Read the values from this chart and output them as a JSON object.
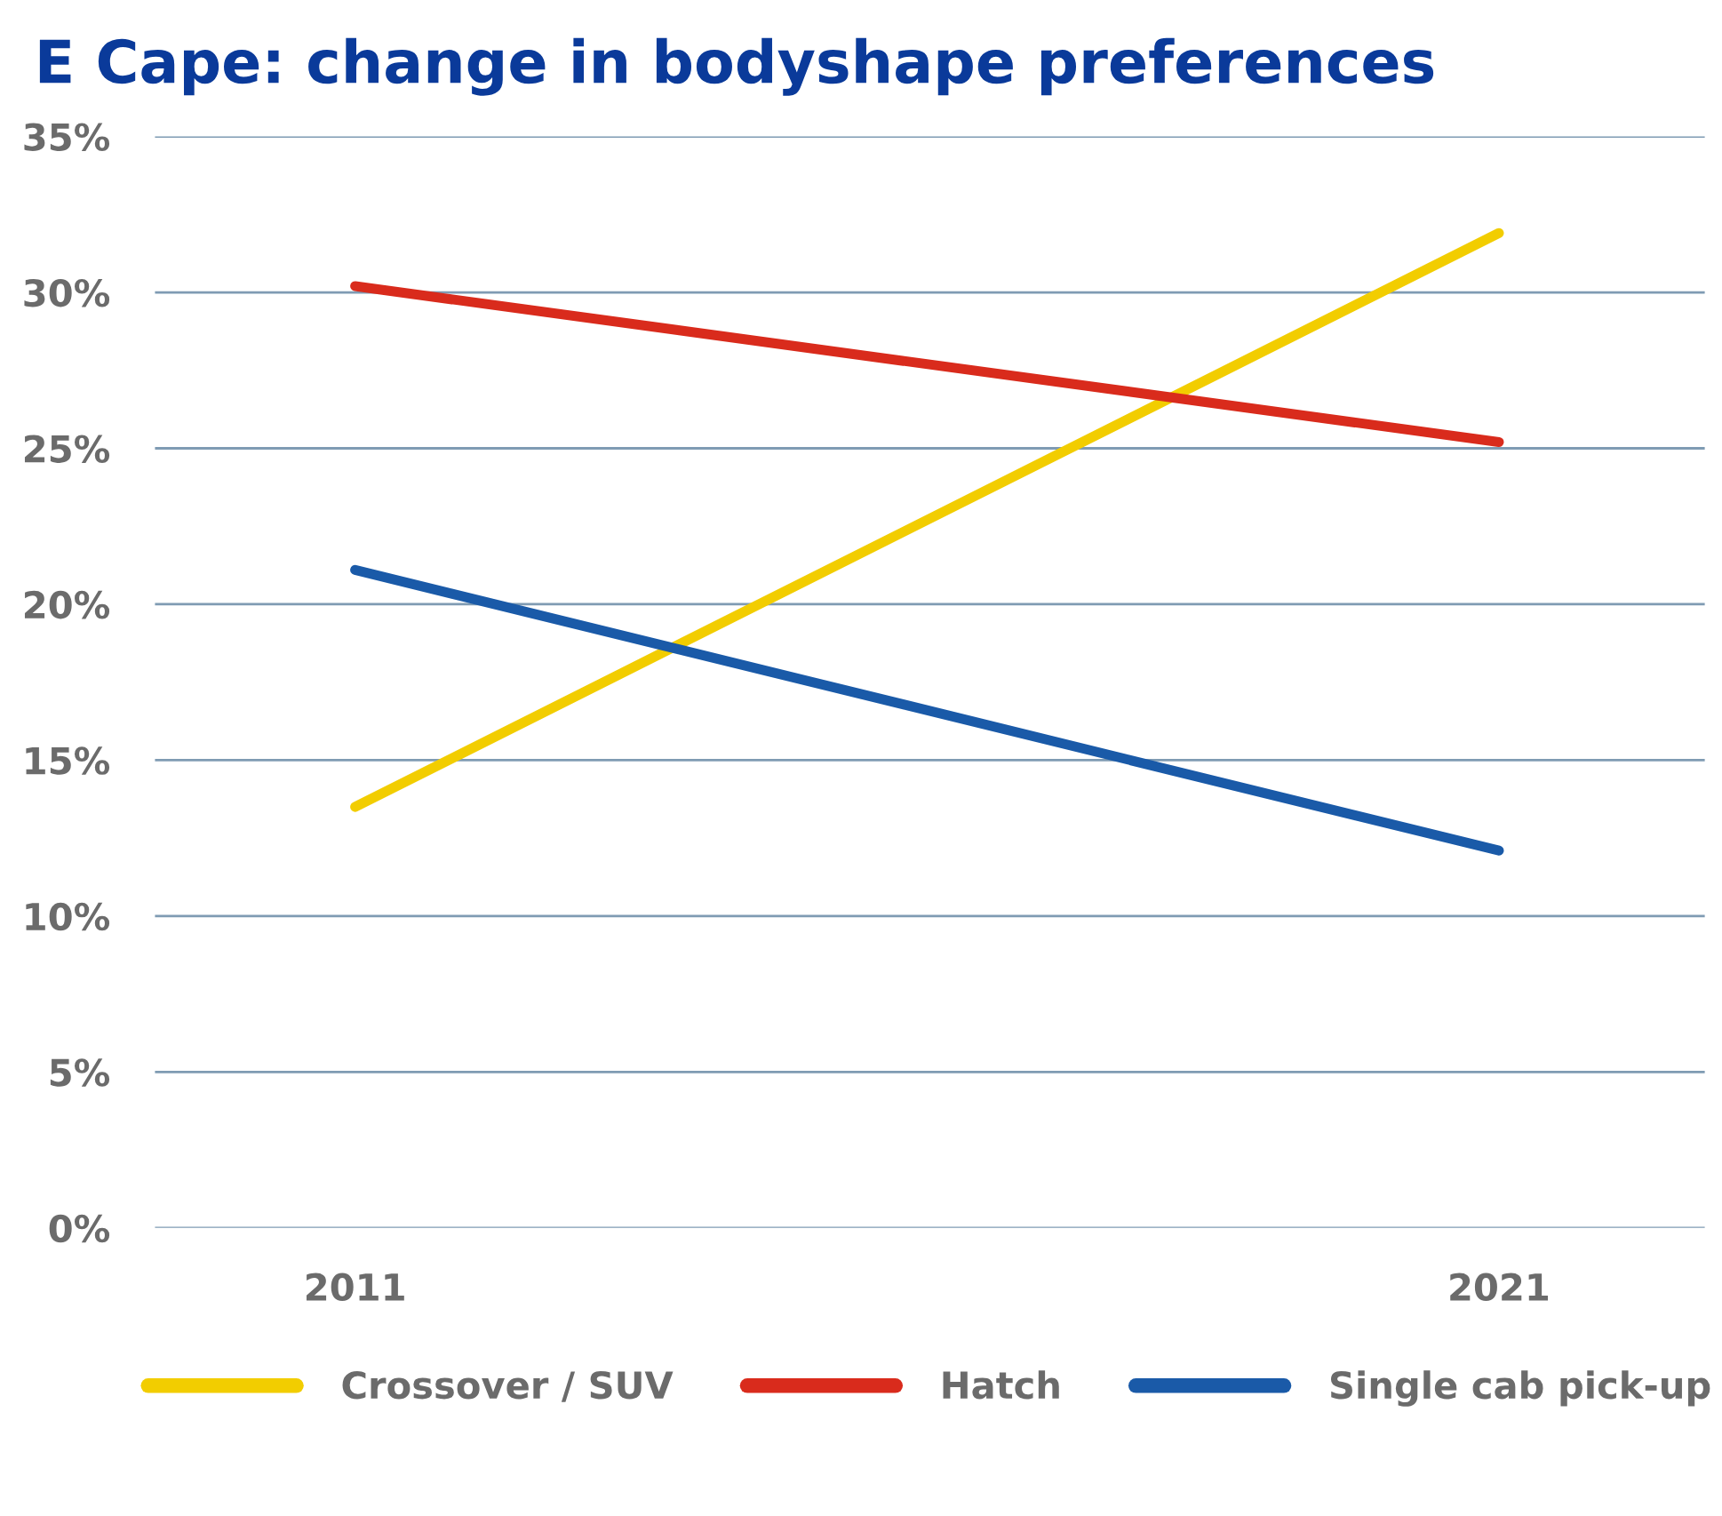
{
  "chart_data": {
    "type": "line",
    "title": "E Cape: change in bodyshape preferences",
    "categories": [
      "2011",
      "2021"
    ],
    "series": [
      {
        "name": "Crossover / SUV",
        "color": "#f2cd00",
        "values": [
          13.5,
          31.9
        ]
      },
      {
        "name": "Hatch",
        "color": "#d92b1c",
        "values": [
          30.2,
          25.2
        ]
      },
      {
        "name": "Single cab pick-up",
        "color": "#1a5aa8",
        "values": [
          21.1,
          12.1
        ]
      }
    ],
    "ylim": [
      0,
      35
    ],
    "yticks": [
      {
        "value": 0,
        "label": "0%"
      },
      {
        "value": 5,
        "label": "5%"
      },
      {
        "value": 10,
        "label": "10%"
      },
      {
        "value": 15,
        "label": "15%"
      },
      {
        "value": 20,
        "label": "20%"
      },
      {
        "value": 25,
        "label": "25%"
      },
      {
        "value": 30,
        "label": "30%"
      },
      {
        "value": 35,
        "label": "35%"
      }
    ],
    "grid": "y",
    "legend": "bottom",
    "marker": "none",
    "line_style": "solid"
  }
}
